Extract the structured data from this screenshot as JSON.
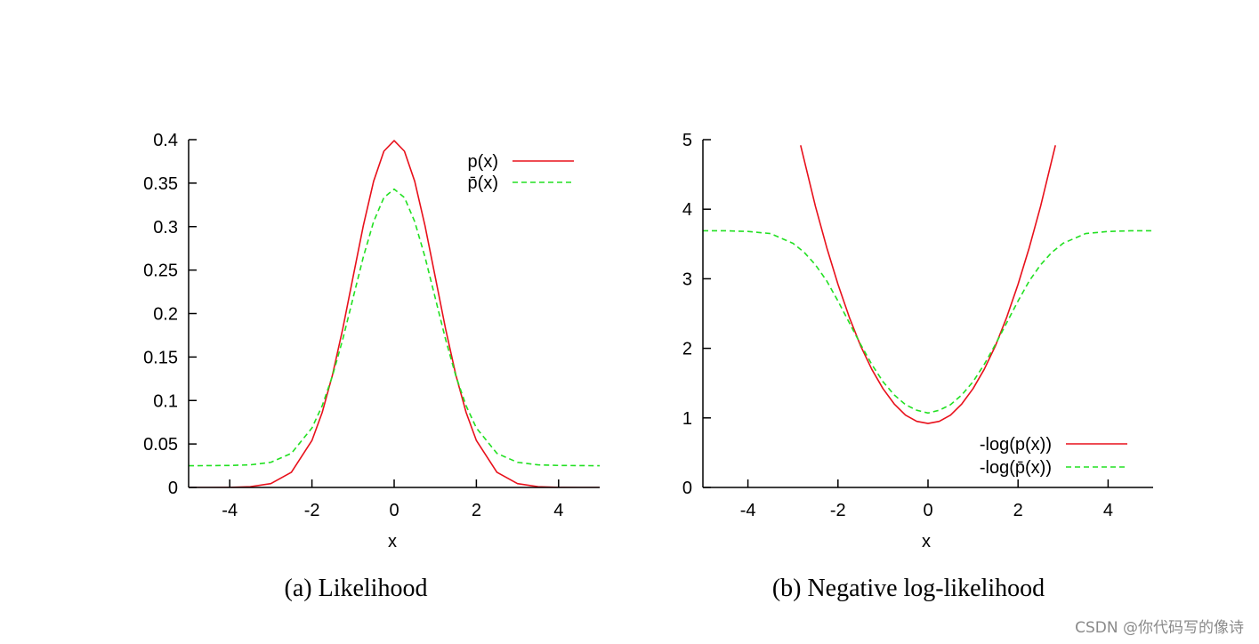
{
  "chart_data": [
    {
      "type": "line",
      "id": "a",
      "caption": "(a) Likelihood",
      "xlabel": "x",
      "ylabel": "",
      "xlim": [
        -5,
        5
      ],
      "ylim": [
        0,
        0.4
      ],
      "x_ticks": [
        -4,
        -2,
        0,
        2,
        4
      ],
      "x_tick_labels": [
        "-4",
        "-2",
        "0",
        "2",
        "4"
      ],
      "y_ticks": [
        0,
        0.05,
        0.1,
        0.15,
        0.2,
        0.25,
        0.3,
        0.35,
        0.4
      ],
      "y_tick_labels": [
        "0",
        "0.05",
        "0.1",
        "0.15",
        "0.2",
        "0.25",
        "0.3",
        "0.35",
        "0.4"
      ],
      "legend_position": "top-right",
      "series": [
        {
          "name": "p(x)",
          "color": "#e8101b",
          "style": "solid",
          "x": [
            -5,
            -4.5,
            -4,
            -3.5,
            -3,
            -2.5,
            -2,
            -1.75,
            -1.5,
            -1.25,
            -1,
            -0.75,
            -0.5,
            -0.25,
            0,
            0.25,
            0.5,
            0.75,
            1,
            1.25,
            1.5,
            1.75,
            2,
            2.5,
            3,
            3.5,
            4,
            4.5,
            5
          ],
          "y": [
            0.0,
            0.0,
            0.0001,
            0.0009,
            0.0044,
            0.0175,
            0.054,
            0.0863,
            0.1295,
            0.1826,
            0.242,
            0.3011,
            0.3521,
            0.3867,
            0.3989,
            0.3867,
            0.3521,
            0.3011,
            0.242,
            0.1826,
            0.1295,
            0.0863,
            0.054,
            0.0175,
            0.0044,
            0.0009,
            0.0001,
            0.0,
            0.0
          ]
        },
        {
          "name": "p̄(x)",
          "color": "#22e022",
          "style": "dashed",
          "x": [
            -5,
            -4.5,
            -4,
            -3.5,
            -3,
            -2.5,
            -2,
            -1.75,
            -1.5,
            -1.25,
            -1,
            -0.75,
            -0.5,
            -0.25,
            0,
            0.25,
            0.5,
            0.75,
            1,
            1.25,
            1.5,
            1.75,
            2,
            2.5,
            3,
            3.5,
            4,
            4.5,
            5
          ],
          "y": [
            0.025,
            0.0251,
            0.0253,
            0.026,
            0.0289,
            0.0392,
            0.0684,
            0.094,
            0.1284,
            0.1705,
            0.2178,
            0.2651,
            0.3057,
            0.3334,
            0.3431,
            0.3334,
            0.3057,
            0.2651,
            0.2178,
            0.1705,
            0.1284,
            0.094,
            0.0684,
            0.0392,
            0.0289,
            0.026,
            0.0253,
            0.0251,
            0.025
          ]
        }
      ]
    },
    {
      "type": "line",
      "id": "b",
      "caption": "(b) Negative log-likelihood",
      "xlabel": "x",
      "ylabel": "",
      "xlim": [
        -5,
        5
      ],
      "ylim": [
        0,
        5
      ],
      "x_ticks": [
        -4,
        -2,
        0,
        2,
        4
      ],
      "x_tick_labels": [
        "-4",
        "-2",
        "0",
        "2",
        "4"
      ],
      "y_ticks": [
        0,
        1,
        2,
        3,
        4,
        5
      ],
      "y_tick_labels": [
        "0",
        "1",
        "2",
        "3",
        "4",
        "5"
      ],
      "legend_position": "bottom-right",
      "series": [
        {
          "name": "-log(p(x))",
          "color": "#e8101b",
          "style": "solid",
          "x": [
            -2.83,
            -2.5,
            -2.25,
            -2,
            -1.75,
            -1.5,
            -1.25,
            -1,
            -0.75,
            -0.5,
            -0.25,
            0,
            0.25,
            0.5,
            0.75,
            1,
            1.25,
            1.5,
            1.75,
            2,
            2.25,
            2.5,
            2.83
          ],
          "y": [
            4.92,
            4.04,
            3.45,
            2.92,
            2.45,
            2.04,
            1.7,
            1.42,
            1.2,
            1.04,
            0.95,
            0.92,
            0.95,
            1.04,
            1.2,
            1.42,
            1.7,
            2.04,
            2.45,
            2.92,
            3.45,
            4.04,
            4.92
          ]
        },
        {
          "name": "-log(p̄(x))",
          "color": "#22e022",
          "style": "dashed",
          "x": [
            -5,
            -4.5,
            -4,
            -3.5,
            -3,
            -2.75,
            -2.5,
            -2.25,
            -2,
            -1.75,
            -1.5,
            -1.25,
            -1,
            -0.75,
            -0.5,
            -0.25,
            0,
            0.25,
            0.5,
            0.75,
            1,
            1.25,
            1.5,
            1.75,
            2,
            2.25,
            2.5,
            2.75,
            3,
            3.5,
            4,
            4.5,
            5
          ],
          "y": [
            3.69,
            3.69,
            3.68,
            3.65,
            3.51,
            3.38,
            3.2,
            2.97,
            2.68,
            2.37,
            2.06,
            1.77,
            1.52,
            1.33,
            1.19,
            1.11,
            1.07,
            1.11,
            1.19,
            1.33,
            1.52,
            1.77,
            2.06,
            2.37,
            2.68,
            2.97,
            3.2,
            3.38,
            3.51,
            3.65,
            3.68,
            3.69,
            3.69
          ]
        }
      ]
    }
  ],
  "watermark": "CSDN @你代码写的像诗"
}
